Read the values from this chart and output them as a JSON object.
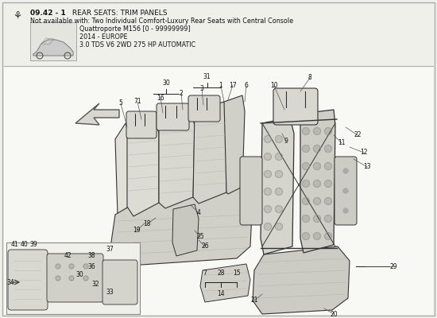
{
  "title_number": "09.42 - 1",
  "title_text": " REAR SEATS: TRIM PANELS",
  "subtitle1": "Not available with: Two Individual Comfort-Luxury Rear Seats with Central Console",
  "subtitle2": "Quattroporte M156 [0 - 99999999]",
  "subtitle3": "2014 - EUROPE",
  "subtitle4": "3.0 TDS V6 2WD 275 HP AUTOMATIC",
  "bg_color": "#f0f0eb",
  "border_color": "#999999",
  "text_color": "#111111",
  "label_color": "#111111",
  "fig_w": 5.5,
  "fig_h": 4.0,
  "dpi": 100
}
